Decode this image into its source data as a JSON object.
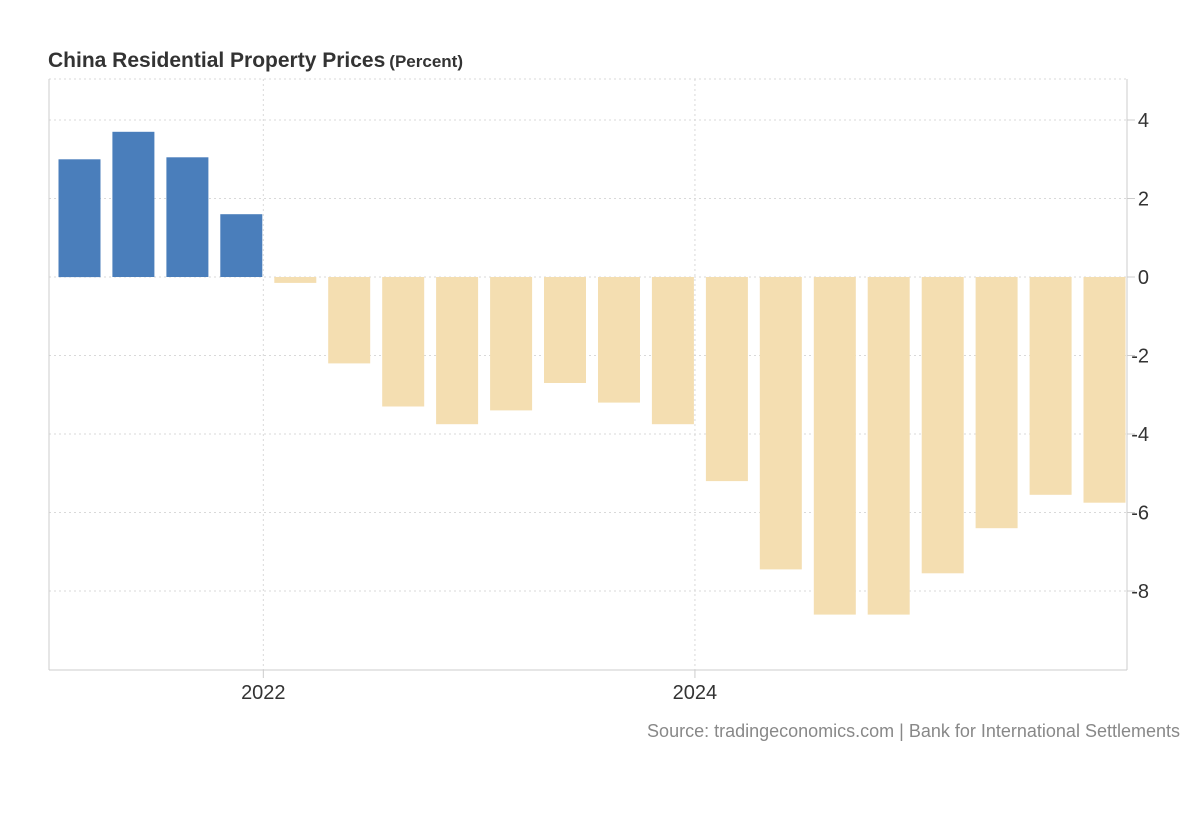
{
  "title": "China Residential Property Prices",
  "unit": "(Percent)",
  "source": "Source: tradingeconomics.com | Bank for International Settlements",
  "colors": {
    "positive": "#4a7ebb",
    "negative": "#f4deb1",
    "grid": "#d9d9d9",
    "axis": "#cccccc",
    "tick_text": "#333333"
  },
  "chart_data": {
    "type": "bar",
    "title": "China Residential Property Prices",
    "ylabel": "",
    "xlabel": "",
    "ylim": [
      -10,
      5
    ],
    "yticks": [
      4,
      2,
      0,
      -2,
      -4,
      -6,
      -8
    ],
    "xticks": [
      {
        "label": "2022",
        "after_index": 4
      },
      {
        "label": "2024",
        "after_index": 12
      }
    ],
    "values": [
      3.0,
      3.7,
      3.05,
      1.6,
      -0.15,
      -2.2,
      -3.3,
      -3.75,
      -3.4,
      -2.7,
      -3.2,
      -3.75,
      -5.2,
      -7.45,
      -8.6,
      -8.6,
      -7.55,
      -6.4,
      -5.55,
      -5.75
    ],
    "grid": true,
    "y_axis_side": "right"
  }
}
